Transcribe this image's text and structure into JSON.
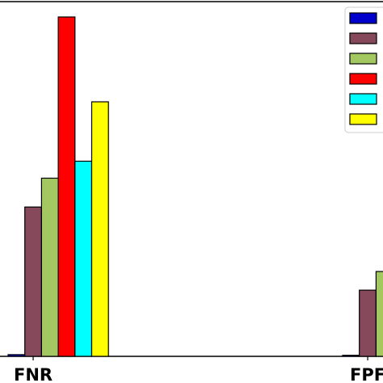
{
  "chart_data": {
    "type": "bar",
    "categories": [
      "FNR",
      "FPR"
    ],
    "category_labels_visible": [
      "FNR",
      "FPF"
    ],
    "series": [
      {
        "color": "#0000cc",
        "values": [
          0.005,
          0.003
        ]
      },
      {
        "color": "#86495b",
        "values": [
          0.44,
          0.195
        ]
      },
      {
        "color": "#a3c861",
        "values": [
          0.525,
          0.25
        ]
      },
      {
        "color": "#ff0000",
        "values": [
          1.0,
          null
        ]
      },
      {
        "color": "#00ffff",
        "values": [
          0.575,
          null
        ]
      },
      {
        "color": "#ffff00",
        "values": [
          0.75,
          null
        ]
      }
    ],
    "ylim": [
      0,
      1.0
    ],
    "grid": false,
    "legend": {
      "placement": "top-right",
      "entries": 6,
      "labels_visible": false
    }
  }
}
